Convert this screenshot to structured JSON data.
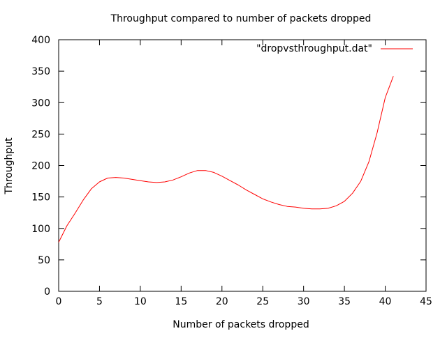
{
  "chart_data": {
    "type": "line",
    "title": "Throughput compared to number of packets dropped",
    "xlabel": "Number of packets dropped",
    "ylabel": "Throughput",
    "xlim": [
      0,
      45
    ],
    "ylim": [
      0,
      400
    ],
    "xticks": [
      0,
      5,
      10,
      15,
      20,
      25,
      30,
      35,
      40,
      45
    ],
    "yticks": [
      0,
      50,
      100,
      150,
      200,
      250,
      300,
      350,
      400
    ],
    "grid": false,
    "legend_position": "top-right",
    "series": [
      {
        "name": "\"dropvsthroughput.dat\"",
        "color": "#ff0000",
        "x": [
          0,
          1,
          2,
          3,
          4,
          5,
          6,
          7,
          8,
          9,
          10,
          11,
          12,
          13,
          14,
          15,
          16,
          17,
          18,
          19,
          20,
          21,
          22,
          23,
          24,
          25,
          26,
          27,
          28,
          29,
          30,
          31,
          32,
          33,
          34,
          35,
          36,
          37,
          38,
          39,
          40,
          41
        ],
        "values": [
          78,
          104,
          124,
          145,
          163,
          174,
          180,
          181,
          180,
          178,
          176,
          174,
          173,
          174,
          177,
          182,
          188,
          192,
          192,
          189,
          183,
          176,
          169,
          161,
          154,
          147,
          142,
          138,
          135,
          134,
          132,
          131,
          131,
          132,
          136,
          143,
          156,
          175,
          206,
          252,
          308,
          342
        ]
      }
    ]
  }
}
